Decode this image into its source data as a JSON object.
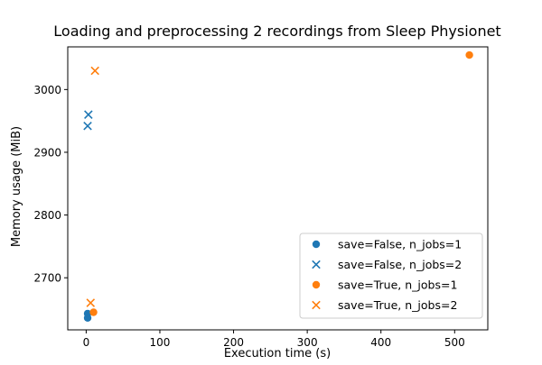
{
  "chart_data": {
    "type": "scatter",
    "title": "Loading and preprocessing 2 recordings from Sleep Physionet",
    "xlabel": "Execution time (s)",
    "ylabel": "Memory usage (MiB)",
    "xlim": [
      -25,
      545
    ],
    "ylim": [
      2617,
      3068
    ],
    "x_ticks": [
      0,
      100,
      200,
      300,
      400,
      500
    ],
    "y_ticks": [
      2700,
      2800,
      2900,
      3000
    ],
    "grid": false,
    "legend_position": "lower right",
    "series": [
      {
        "name": "save=False, n_jobs=1",
        "marker": "circle",
        "color": "#1f77b4",
        "points": [
          {
            "x": 2,
            "y": 2636
          },
          {
            "x": 2,
            "y": 2643
          }
        ]
      },
      {
        "name": "save=False, n_jobs=2",
        "marker": "x",
        "color": "#1f77b4",
        "points": [
          {
            "x": 2,
            "y": 2942
          },
          {
            "x": 3,
            "y": 2960
          }
        ]
      },
      {
        "name": "save=True, n_jobs=1",
        "marker": "circle",
        "color": "#ff7f0e",
        "points": [
          {
            "x": 10,
            "y": 2645
          },
          {
            "x": 520,
            "y": 3055
          }
        ]
      },
      {
        "name": "save=True, n_jobs=2",
        "marker": "x",
        "color": "#ff7f0e",
        "points": [
          {
            "x": 6,
            "y": 2660
          },
          {
            "x": 12,
            "y": 3030
          }
        ]
      }
    ]
  }
}
